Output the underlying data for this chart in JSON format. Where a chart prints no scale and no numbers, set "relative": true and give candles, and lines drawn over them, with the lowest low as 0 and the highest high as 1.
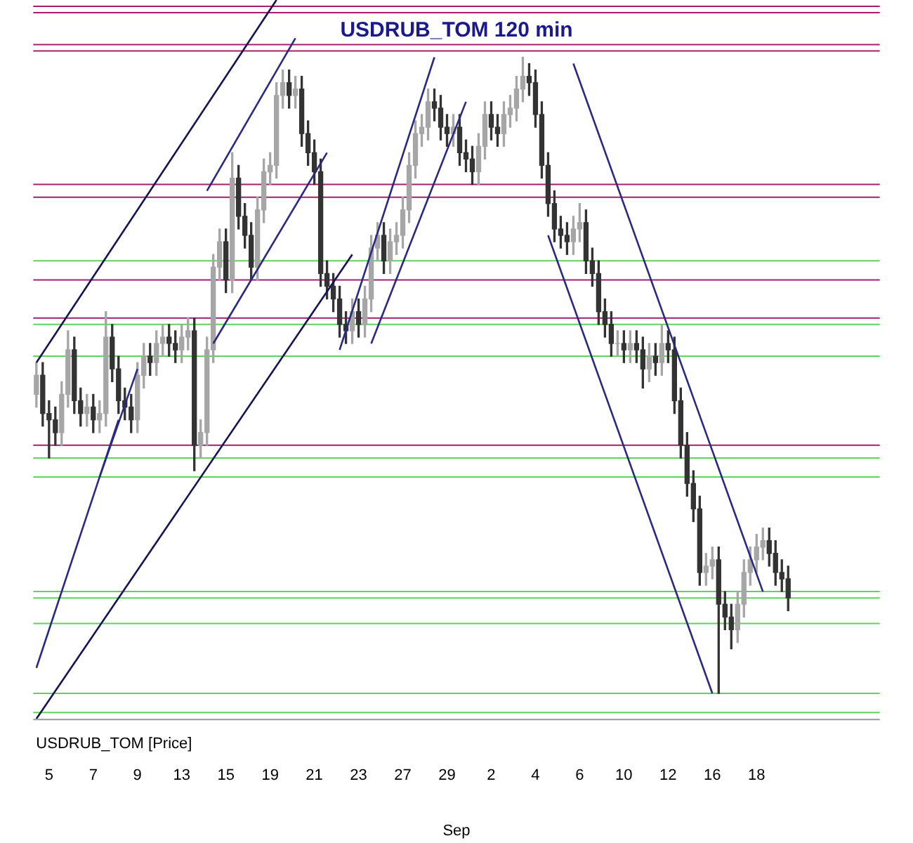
{
  "chart_data": {
    "type": "candlestick",
    "title": "USDRUB_TOM 120 min",
    "xlabel": "Sep",
    "annotations": [
      "USDRUB_TOM [Price]"
    ],
    "relative": true,
    "legend": false,
    "colors": [
      "#a6a6a6",
      "#333333",
      "#333333",
      "#333333",
      "#a6a6a6",
      "#a6a6a6",
      "#333333",
      "#333333",
      "#a6a6a6",
      "#333333",
      "#a6a6a6",
      "#a6a6a6",
      "#333333",
      "#333333",
      "#333333",
      "#333333",
      "#a6a6a6",
      "#a6a6a6",
      "#333333",
      "#a6a6a6",
      "#a6a6a6",
      "#333333",
      "#333333",
      "#a6a6a6",
      "#a6a6a6",
      "#333333",
      "#a6a6a6",
      "#a6a6a6",
      "#a6a6a6",
      "#a6a6a6",
      "#333333",
      "#a6a6a6",
      "#333333",
      "#333333",
      "#333333",
      "#a6a6a6",
      "#a6a6a6",
      "#a6a6a6",
      "#a6a6a6",
      "#a6a6a6",
      "#333333",
      "#a6a6a6",
      "#333333",
      "#333333",
      "#333333",
      "#333333",
      "#333333",
      "#333333",
      "#333333",
      "#333333",
      "#a6a6a6",
      "#333333",
      "#a6a6a6",
      "#a6a6a6",
      "#a6a6a6",
      "#333333",
      "#a6a6a6",
      "#a6a6a6",
      "#a6a6a6",
      "#a6a6a6",
      "#a6a6a6",
      "#a6a6a6",
      "#a6a6a6",
      "#333333",
      "#333333",
      "#333333",
      "#a6a6a6",
      "#333333",
      "#333333",
      "#333333",
      "#a6a6a6",
      "#a6a6a6",
      "#333333",
      "#333333",
      "#a6a6a6",
      "#a6a6a6",
      "#a6a6a6",
      "#a6a6a6",
      "#333333",
      "#333333",
      "#333333",
      "#333333",
      "#333333",
      "#333333",
      "#333333",
      "#a6a6a6",
      "#a6a6a6",
      "#333333",
      "#333333",
      "#333333",
      "#333333",
      "#333333",
      "#a6a6a6",
      "#333333",
      "#a6a6a6",
      "#333333",
      "#333333",
      "#a6a6a6",
      "#333333",
      "#a6a6a6",
      "#333333",
      "#333333",
      "#333333",
      "#333333",
      "#333333",
      "#333333",
      "#a6a6a6",
      "#a6a6a6",
      "#333333",
      "#333333",
      "#333333",
      "#a6a6a6",
      "#a6a6a6",
      "#a6a6a6",
      "#a6a6a6",
      "#a6a6a6",
      "#333333",
      "#333333",
      "#333333",
      "#333333",
      null,
      null,
      null,
      null,
      null,
      null,
      null,
      null,
      null,
      null,
      null,
      null,
      null,
      null
    ],
    "categories": [
      null,
      null,
      "5",
      null,
      null,
      null,
      null,
      null,
      null,
      "7",
      null,
      null,
      null,
      null,
      null,
      null,
      "9",
      null,
      null,
      null,
      null,
      null,
      null,
      "13",
      null,
      null,
      null,
      null,
      null,
      null,
      "15",
      null,
      null,
      null,
      null,
      null,
      null,
      "19",
      null,
      null,
      null,
      null,
      null,
      null,
      "21",
      null,
      null,
      null,
      null,
      null,
      null,
      "23",
      null,
      null,
      null,
      null,
      null,
      null,
      "27",
      null,
      null,
      null,
      null,
      null,
      null,
      "29",
      null,
      null,
      null,
      null,
      null,
      null,
      "2",
      null,
      null,
      null,
      null,
      null,
      null,
      "4",
      null,
      null,
      null,
      null,
      null,
      null,
      "6",
      null,
      null,
      null,
      null,
      null,
      null,
      "10",
      null,
      null,
      null,
      null,
      null,
      null,
      "12",
      null,
      null,
      null,
      null,
      null,
      null,
      "16",
      null,
      null,
      null,
      null,
      null,
      null,
      "18",
      null,
      null,
      null,
      null,
      null,
      null,
      null,
      null,
      null,
      null,
      null,
      null,
      null,
      null,
      null,
      null,
      null,
      null,
      null
    ],
    "ohlc": [
      [
        0.47,
        0.52,
        0.45,
        0.5
      ],
      [
        0.5,
        0.52,
        0.42,
        0.44
      ],
      [
        0.44,
        0.46,
        0.37,
        0.43
      ],
      [
        0.43,
        0.45,
        0.39,
        0.41
      ],
      [
        0.41,
        0.49,
        0.39,
        0.47
      ],
      [
        0.47,
        0.57,
        0.45,
        0.54
      ],
      [
        0.54,
        0.56,
        0.44,
        0.46
      ],
      [
        0.46,
        0.48,
        0.42,
        0.44
      ],
      [
        0.44,
        0.47,
        0.42,
        0.45
      ],
      [
        0.45,
        0.47,
        0.41,
        0.43
      ],
      [
        0.43,
        0.46,
        0.41,
        0.44
      ],
      [
        0.44,
        0.6,
        0.42,
        0.56
      ],
      [
        0.56,
        0.58,
        0.49,
        0.51
      ],
      [
        0.51,
        0.53,
        0.44,
        0.46
      ],
      [
        0.46,
        0.48,
        0.43,
        0.45
      ],
      [
        0.45,
        0.47,
        0.41,
        0.43
      ],
      [
        0.43,
        0.52,
        0.41,
        0.5
      ],
      [
        0.5,
        0.55,
        0.48,
        0.53
      ],
      [
        0.53,
        0.55,
        0.5,
        0.52
      ],
      [
        0.52,
        0.57,
        0.5,
        0.55
      ],
      [
        0.55,
        0.58,
        0.53,
        0.56
      ],
      [
        0.56,
        0.58,
        0.53,
        0.55
      ],
      [
        0.55,
        0.57,
        0.52,
        0.54
      ],
      [
        0.54,
        0.58,
        0.52,
        0.56
      ],
      [
        0.56,
        0.59,
        0.54,
        0.57
      ],
      [
        0.57,
        0.59,
        0.35,
        0.39
      ],
      [
        0.39,
        0.43,
        0.37,
        0.41
      ],
      [
        0.41,
        0.56,
        0.39,
        0.54
      ],
      [
        0.54,
        0.69,
        0.52,
        0.67
      ],
      [
        0.67,
        0.73,
        0.65,
        0.71
      ],
      [
        0.71,
        0.73,
        0.63,
        0.65
      ],
      [
        0.65,
        0.85,
        0.63,
        0.81
      ],
      [
        0.81,
        0.83,
        0.73,
        0.75
      ],
      [
        0.75,
        0.77,
        0.7,
        0.72
      ],
      [
        0.72,
        0.74,
        0.65,
        0.67
      ],
      [
        0.67,
        0.78,
        0.65,
        0.76
      ],
      [
        0.76,
        0.84,
        0.74,
        0.82
      ],
      [
        0.82,
        0.85,
        0.8,
        0.83
      ],
      [
        0.83,
        0.96,
        0.81,
        0.94
      ],
      [
        0.94,
        0.98,
        0.92,
        0.96
      ],
      [
        0.96,
        0.98,
        0.92,
        0.94
      ],
      [
        0.94,
        0.97,
        0.92,
        0.95
      ],
      [
        0.95,
        0.97,
        0.86,
        0.88
      ],
      [
        0.88,
        0.9,
        0.83,
        0.85
      ],
      [
        0.85,
        0.87,
        0.8,
        0.82
      ],
      [
        0.82,
        0.84,
        0.64,
        0.66
      ],
      [
        0.66,
        0.68,
        0.62,
        0.64
      ],
      [
        0.64,
        0.66,
        0.6,
        0.62
      ],
      [
        0.62,
        0.64,
        0.56,
        0.58
      ],
      [
        0.58,
        0.6,
        0.55,
        0.57
      ],
      [
        0.57,
        0.62,
        0.55,
        0.6
      ],
      [
        0.6,
        0.62,
        0.56,
        0.58
      ],
      [
        0.58,
        0.64,
        0.56,
        0.62
      ],
      [
        0.62,
        0.72,
        0.6,
        0.7
      ],
      [
        0.7,
        0.74,
        0.68,
        0.72
      ],
      [
        0.72,
        0.74,
        0.66,
        0.68
      ],
      [
        0.68,
        0.73,
        0.66,
        0.71
      ],
      [
        0.71,
        0.74,
        0.69,
        0.72
      ],
      [
        0.72,
        0.78,
        0.7,
        0.76
      ],
      [
        0.76,
        0.85,
        0.74,
        0.83
      ],
      [
        0.83,
        0.9,
        0.81,
        0.88
      ],
      [
        0.88,
        0.91,
        0.86,
        0.89
      ],
      [
        0.89,
        0.95,
        0.87,
        0.93
      ],
      [
        0.93,
        0.95,
        0.9,
        0.92
      ],
      [
        0.92,
        0.94,
        0.87,
        0.89
      ],
      [
        0.89,
        0.91,
        0.86,
        0.88
      ],
      [
        0.88,
        0.91,
        0.86,
        0.89
      ],
      [
        0.89,
        0.91,
        0.83,
        0.85
      ],
      [
        0.85,
        0.87,
        0.82,
        0.84
      ],
      [
        0.84,
        0.86,
        0.8,
        0.82
      ],
      [
        0.82,
        0.88,
        0.8,
        0.86
      ],
      [
        0.86,
        0.93,
        0.84,
        0.91
      ],
      [
        0.91,
        0.93,
        0.87,
        0.89
      ],
      [
        0.89,
        0.91,
        0.86,
        0.88
      ],
      [
        0.88,
        0.93,
        0.86,
        0.91
      ],
      [
        0.91,
        0.94,
        0.89,
        0.92
      ],
      [
        0.92,
        0.97,
        0.9,
        0.95
      ],
      [
        0.95,
        1.0,
        0.93,
        0.97
      ],
      [
        0.97,
        0.99,
        0.94,
        0.96
      ],
      [
        0.96,
        0.98,
        0.89,
        0.91
      ],
      [
        0.91,
        0.93,
        0.81,
        0.83
      ],
      [
        0.83,
        0.85,
        0.75,
        0.77
      ],
      [
        0.77,
        0.79,
        0.71,
        0.73
      ],
      [
        0.73,
        0.75,
        0.7,
        0.72
      ],
      [
        0.72,
        0.74,
        0.69,
        0.71
      ],
      [
        0.71,
        0.75,
        0.69,
        0.73
      ],
      [
        0.73,
        0.77,
        0.71,
        0.74
      ],
      [
        0.74,
        0.76,
        0.66,
        0.68
      ],
      [
        0.68,
        0.7,
        0.64,
        0.66
      ],
      [
        0.66,
        0.68,
        0.58,
        0.6
      ],
      [
        0.6,
        0.62,
        0.56,
        0.58
      ],
      [
        0.58,
        0.6,
        0.53,
        0.55
      ],
      [
        0.55,
        0.57,
        0.53,
        0.55
      ],
      [
        0.55,
        0.57,
        0.52,
        0.54
      ],
      [
        0.54,
        0.57,
        0.52,
        0.55
      ],
      [
        0.55,
        0.57,
        0.52,
        0.54
      ],
      [
        0.54,
        0.56,
        0.48,
        0.51
      ],
      [
        0.51,
        0.55,
        0.49,
        0.53
      ],
      [
        0.53,
        0.55,
        0.5,
        0.52
      ],
      [
        0.52,
        0.58,
        0.5,
        0.55
      ],
      [
        0.55,
        0.57,
        0.52,
        0.54
      ],
      [
        0.54,
        0.56,
        0.44,
        0.46
      ],
      [
        0.46,
        0.48,
        0.37,
        0.39
      ],
      [
        0.39,
        0.41,
        0.31,
        0.33
      ],
      [
        0.33,
        0.35,
        0.27,
        0.29
      ],
      [
        0.29,
        0.31,
        0.17,
        0.19
      ],
      [
        0.19,
        0.22,
        0.17,
        0.2
      ],
      [
        0.2,
        0.23,
        0.18,
        0.21
      ],
      [
        0.21,
        0.23,
        0,
        0.14
      ],
      [
        0.14,
        0.16,
        0.1,
        0.12
      ],
      [
        0.12,
        0.14,
        0.07,
        0.1
      ],
      [
        0.1,
        0.16,
        0.08,
        0.14
      ],
      [
        0.14,
        0.21,
        0.12,
        0.19
      ],
      [
        0.19,
        0.23,
        0.17,
        0.21
      ],
      [
        0.21,
        0.25,
        0.19,
        0.23
      ],
      [
        0.23,
        0.26,
        0.21,
        0.24
      ],
      [
        0.24,
        0.26,
        0.2,
        0.22
      ],
      [
        0.22,
        0.24,
        0.17,
        0.19
      ],
      [
        0.19,
        0.21,
        0.16,
        0.18
      ],
      [
        0.18,
        0.2,
        0.13,
        0.15
      ],
      null,
      null,
      null,
      null,
      null,
      null,
      null,
      null,
      null,
      null,
      null,
      null,
      null,
      null
    ],
    "series": [
      {
        "type": "line",
        "color": "#141450",
        "values": [
          0.52,
          null,
          null,
          null,
          null,
          null,
          null,
          null,
          null,
          null,
          null,
          null,
          null,
          null,
          null,
          null,
          null,
          null,
          null,
          null,
          null,
          null,
          null,
          null,
          null,
          null,
          null,
          null,
          null,
          null,
          null,
          null,
          null,
          null,
          null,
          null,
          null,
          null,
          1.09,
          null,
          null,
          null,
          null,
          null,
          null,
          null,
          null,
          null,
          null,
          null,
          null,
          null,
          null,
          null,
          null,
          null,
          null,
          null,
          null,
          null,
          null,
          null,
          null,
          null,
          null,
          null,
          null,
          null,
          null,
          null,
          null,
          null,
          null,
          null,
          null,
          null,
          null,
          null,
          null,
          null,
          null,
          null,
          null,
          null,
          null,
          null,
          null,
          null,
          null,
          null,
          null,
          null,
          null,
          null,
          null,
          null,
          null,
          null,
          null,
          null,
          null,
          null,
          null,
          null,
          null,
          null,
          null,
          null,
          null,
          null,
          null,
          null,
          null,
          null,
          null,
          null,
          null,
          null,
          null,
          null,
          null,
          null,
          null,
          null,
          null,
          null,
          null,
          null,
          null,
          null,
          null,
          null,
          null,
          null
        ]
      },
      {
        "type": "line",
        "color": "#141450",
        "values": [
          -0.04,
          null,
          null,
          null,
          null,
          null,
          null,
          null,
          null,
          null,
          null,
          null,
          null,
          null,
          null,
          null,
          null,
          null,
          null,
          null,
          null,
          null,
          null,
          null,
          null,
          null,
          null,
          null,
          null,
          null,
          null,
          null,
          null,
          null,
          null,
          null,
          null,
          null,
          null,
          null,
          null,
          null,
          null,
          null,
          null,
          null,
          null,
          null,
          null,
          null,
          0.69,
          null,
          null,
          null,
          null,
          null,
          null,
          null,
          null,
          null,
          null,
          null,
          null,
          null,
          null,
          null,
          null,
          null,
          null,
          null,
          null,
          null,
          null,
          null,
          null,
          null,
          null,
          null,
          null,
          null,
          null,
          null,
          null,
          null,
          null,
          null,
          null,
          null,
          null,
          null,
          null,
          null,
          null,
          null,
          null,
          null,
          null,
          null,
          null,
          null,
          null,
          null,
          null,
          null,
          null,
          null,
          null,
          null,
          null,
          null,
          null,
          null,
          null,
          null,
          null,
          null,
          null,
          null,
          null,
          null,
          null,
          null,
          null,
          null,
          null,
          null,
          null,
          null,
          null,
          null,
          null,
          null,
          null,
          null
        ]
      },
      {
        "type": "line",
        "color": "#2a2a80",
        "values": [
          null,
          null,
          null,
          null,
          null,
          null,
          null,
          null,
          null,
          null,
          null,
          null,
          null,
          null,
          null,
          null,
          null,
          null,
          null,
          null,
          null,
          null,
          null,
          null,
          null,
          null,
          null,
          0.79,
          null,
          null,
          null,
          null,
          null,
          null,
          null,
          null,
          null,
          null,
          null,
          null,
          null,
          1.03,
          null,
          null,
          null,
          null,
          null,
          null,
          null,
          null,
          null,
          null,
          null,
          null,
          null,
          null,
          null,
          null,
          null,
          null,
          null,
          null,
          null,
          null,
          null,
          null,
          null,
          null,
          null,
          null,
          null,
          null,
          null,
          null,
          null,
          null,
          null,
          null,
          null,
          null,
          null,
          null,
          null,
          null,
          null,
          null,
          null,
          null,
          null,
          null,
          null,
          null,
          null,
          null,
          null,
          null,
          null,
          null,
          null,
          null,
          null,
          null,
          null,
          null,
          null,
          null,
          null,
          null,
          null,
          null,
          null,
          null,
          null,
          null,
          null,
          null,
          null,
          null,
          null,
          null,
          null,
          null,
          null,
          null,
          null,
          null,
          null,
          null,
          null,
          null,
          null,
          null,
          null,
          null
        ]
      },
      {
        "type": "line",
        "color": "#2a2a80",
        "values": [
          null,
          null,
          null,
          null,
          null,
          null,
          null,
          null,
          null,
          null,
          null,
          null,
          null,
          null,
          null,
          null,
          null,
          null,
          null,
          null,
          null,
          null,
          null,
          null,
          null,
          null,
          null,
          null,
          0.55,
          null,
          null,
          null,
          null,
          null,
          null,
          null,
          null,
          null,
          null,
          null,
          null,
          null,
          null,
          null,
          null,
          null,
          0.85,
          null,
          null,
          null,
          null,
          null,
          null,
          null,
          null,
          null,
          null,
          null,
          null,
          null,
          null,
          null,
          null,
          null,
          null,
          null,
          null,
          null,
          null,
          null,
          null,
          null,
          null,
          null,
          null,
          null,
          null,
          null,
          null,
          null,
          null,
          null,
          null,
          null,
          null,
          null,
          null,
          null,
          null,
          null,
          null,
          null,
          null,
          null,
          null,
          null,
          null,
          null,
          null,
          null,
          null,
          null,
          null,
          null,
          null,
          null,
          null,
          null,
          null,
          null,
          null,
          null,
          null,
          null,
          null,
          null,
          null,
          null,
          null,
          null,
          null,
          null,
          null,
          null,
          null,
          null,
          null,
          null,
          null,
          null,
          null,
          null,
          null,
          null
        ]
      },
      {
        "type": "line",
        "color": "#2a2a80",
        "values": [
          0.04,
          null,
          null,
          null,
          null,
          null,
          null,
          null,
          null,
          null,
          null,
          null,
          null,
          0.43,
          null,
          null,
          null,
          null,
          null,
          null,
          null,
          null,
          null,
          null,
          null,
          null,
          null,
          null,
          null,
          null,
          null,
          null,
          null,
          null,
          null,
          null,
          null,
          null,
          null,
          null,
          null,
          null,
          null,
          null,
          null,
          null,
          null,
          null,
          null,
          null,
          null,
          null,
          null,
          null,
          null,
          null,
          null,
          null,
          null,
          null,
          null,
          null,
          null,
          null,
          null,
          null,
          null,
          null,
          null,
          null,
          null,
          null,
          null,
          null,
          null,
          null,
          null,
          null,
          null,
          null,
          null,
          null,
          null,
          null,
          null,
          null,
          null,
          null,
          null,
          null,
          null,
          null,
          null,
          null,
          null,
          null,
          null,
          null,
          null,
          null,
          null,
          null,
          null,
          null,
          null,
          null,
          null,
          null,
          null,
          null,
          null,
          null,
          null,
          null,
          null,
          null,
          null,
          null,
          null,
          null,
          null,
          null,
          null,
          null,
          null,
          null,
          null,
          null,
          null,
          null,
          null,
          null,
          null,
          null
        ]
      },
      {
        "type": "line",
        "color": "#2a2a80",
        "values": [
          null,
          null,
          null,
          null,
          null,
          null,
          null,
          null,
          null,
          null,
          0.34,
          null,
          null,
          null,
          null,
          null,
          0.51,
          null,
          null,
          null,
          null,
          null,
          null,
          null,
          null,
          null,
          null,
          null,
          null,
          null,
          null,
          null,
          null,
          null,
          null,
          null,
          null,
          null,
          null,
          null,
          null,
          null,
          null,
          null,
          null,
          null,
          null,
          null,
          null,
          null,
          null,
          null,
          null,
          null,
          null,
          null,
          null,
          null,
          null,
          null,
          null,
          null,
          null,
          null,
          null,
          null,
          null,
          null,
          null,
          null,
          null,
          null,
          null,
          null,
          null,
          null,
          null,
          null,
          null,
          null,
          null,
          null,
          null,
          null,
          null,
          null,
          null,
          null,
          null,
          null,
          null,
          null,
          null,
          null,
          null,
          null,
          null,
          null,
          null,
          null,
          null,
          null,
          null,
          null,
          null,
          null,
          null,
          null,
          null,
          null,
          null,
          null,
          null,
          null,
          null,
          null,
          null,
          null,
          null,
          null,
          null,
          null,
          null,
          null,
          null,
          null,
          null,
          null,
          null,
          null,
          null,
          null,
          null,
          null
        ]
      },
      {
        "type": "line",
        "color": "#2a2a80",
        "values": [
          null,
          null,
          null,
          null,
          null,
          null,
          null,
          null,
          null,
          null,
          null,
          null,
          null,
          null,
          null,
          null,
          null,
          null,
          null,
          null,
          null,
          null,
          null,
          null,
          null,
          null,
          null,
          null,
          null,
          null,
          null,
          null,
          null,
          null,
          null,
          null,
          null,
          null,
          null,
          null,
          null,
          null,
          null,
          null,
          null,
          null,
          null,
          null,
          0.54,
          null,
          null,
          null,
          null,
          null,
          null,
          null,
          null,
          null,
          null,
          null,
          null,
          null,
          null,
          1.0,
          null,
          null,
          null,
          null,
          null,
          null,
          null,
          null,
          null,
          null,
          null,
          null,
          null,
          null,
          null,
          null,
          null,
          null,
          null,
          null,
          null,
          null,
          null,
          null,
          null,
          null,
          null,
          null,
          null,
          null,
          null,
          null,
          null,
          null,
          null,
          null,
          null,
          null,
          null,
          null,
          null,
          null,
          null,
          null,
          null,
          null,
          null,
          null,
          null,
          null,
          null,
          null,
          null,
          null,
          null,
          null,
          null,
          null,
          null,
          null,
          null,
          null,
          null,
          null,
          null,
          null,
          null,
          null,
          null,
          null
        ]
      },
      {
        "type": "line",
        "color": "#2a2a80",
        "values": [
          null,
          null,
          null,
          null,
          null,
          null,
          null,
          null,
          null,
          null,
          null,
          null,
          null,
          null,
          null,
          null,
          null,
          null,
          null,
          null,
          null,
          null,
          null,
          null,
          null,
          null,
          null,
          null,
          null,
          null,
          null,
          null,
          null,
          null,
          null,
          null,
          null,
          null,
          null,
          null,
          null,
          null,
          null,
          null,
          null,
          null,
          null,
          null,
          null,
          null,
          null,
          null,
          null,
          0.55,
          null,
          null,
          null,
          null,
          null,
          null,
          null,
          null,
          null,
          null,
          null,
          null,
          null,
          null,
          0.93,
          null,
          null,
          null,
          null,
          null,
          null,
          null,
          null,
          null,
          null,
          null,
          null,
          null,
          null,
          null,
          null,
          null,
          null,
          null,
          null,
          null,
          null,
          null,
          null,
          null,
          null,
          null,
          null,
          null,
          null,
          null,
          null,
          null,
          null,
          null,
          null,
          null,
          null,
          null,
          null,
          null,
          null,
          null,
          null,
          null,
          null,
          null,
          null,
          null,
          null,
          null,
          null,
          null,
          null,
          null,
          null,
          null,
          null,
          null,
          null,
          null,
          null,
          null,
          null,
          null
        ]
      },
      {
        "type": "line",
        "color": "#2a2a80",
        "values": [
          null,
          null,
          null,
          null,
          null,
          null,
          null,
          null,
          null,
          null,
          null,
          null,
          null,
          null,
          null,
          null,
          null,
          null,
          null,
          null,
          null,
          null,
          null,
          null,
          null,
          null,
          null,
          null,
          null,
          null,
          null,
          null,
          null,
          null,
          null,
          null,
          null,
          null,
          null,
          null,
          null,
          null,
          null,
          null,
          null,
          null,
          null,
          null,
          null,
          null,
          null,
          null,
          null,
          null,
          null,
          null,
          null,
          null,
          null,
          null,
          null,
          null,
          null,
          null,
          null,
          null,
          null,
          null,
          null,
          null,
          null,
          null,
          null,
          null,
          null,
          null,
          null,
          null,
          null,
          null,
          null,
          null,
          null,
          null,
          null,
          0.99,
          null,
          null,
          null,
          null,
          null,
          null,
          null,
          null,
          null,
          null,
          null,
          null,
          null,
          null,
          null,
          null,
          null,
          null,
          null,
          null,
          null,
          null,
          null,
          null,
          null,
          null,
          null,
          null,
          null,
          0.16,
          null,
          null,
          null,
          null,
          null,
          null,
          null,
          null,
          null,
          null,
          null,
          null,
          null,
          null,
          null,
          null,
          null,
          null
        ]
      },
      {
        "type": "line",
        "color": "#2a2a80",
        "values": [
          null,
          null,
          null,
          null,
          null,
          null,
          null,
          null,
          null,
          null,
          null,
          null,
          null,
          null,
          null,
          null,
          null,
          null,
          null,
          null,
          null,
          null,
          null,
          null,
          null,
          null,
          null,
          null,
          null,
          null,
          null,
          null,
          null,
          null,
          null,
          null,
          null,
          null,
          null,
          null,
          null,
          null,
          null,
          null,
          null,
          null,
          null,
          null,
          null,
          null,
          null,
          null,
          null,
          null,
          null,
          null,
          null,
          null,
          null,
          null,
          null,
          null,
          null,
          null,
          null,
          null,
          null,
          null,
          null,
          null,
          null,
          null,
          null,
          null,
          null,
          null,
          null,
          null,
          null,
          null,
          null,
          0.72,
          null,
          null,
          null,
          null,
          null,
          null,
          null,
          null,
          null,
          null,
          null,
          null,
          null,
          null,
          null,
          null,
          null,
          null,
          null,
          null,
          null,
          null,
          null,
          null,
          null,
          0,
          null,
          null,
          null,
          null,
          null,
          null,
          null,
          null,
          null,
          null,
          null,
          null,
          null,
          null,
          null,
          null,
          null,
          null,
          null,
          null,
          null,
          null,
          null,
          null,
          null,
          null
        ]
      }
    ],
    "ref_lines": [
      {
        "axis": "y",
        "value": 1.08,
        "color": "#a3206e"
      },
      {
        "axis": "y",
        "value": 1.07,
        "color": "#a3206e"
      },
      {
        "axis": "y",
        "value": 1.02,
        "color": "#a3206e"
      },
      {
        "axis": "y",
        "value": 1.01,
        "color": "#a3206e"
      },
      {
        "axis": "y",
        "value": 0.8,
        "color": "#a3206e"
      },
      {
        "axis": "y",
        "value": 0.78,
        "color": "#a3206e"
      },
      {
        "axis": "y",
        "value": 0.68,
        "color": "#5fd35f"
      },
      {
        "axis": "y",
        "value": 0.65,
        "color": "#a3206e"
      },
      {
        "axis": "y",
        "value": 0.59,
        "color": "#a3206e"
      },
      {
        "axis": "y",
        "value": 0.58,
        "color": "#5fd35f"
      },
      {
        "axis": "y",
        "value": 0.53,
        "color": "#5fd35f"
      },
      {
        "axis": "y",
        "value": 0.39,
        "color": "#a3206e"
      },
      {
        "axis": "y",
        "value": 0.37,
        "color": "#5fd35f"
      },
      {
        "axis": "y",
        "value": 0.34,
        "color": "#5fd35f"
      },
      {
        "axis": "y",
        "value": 0.16,
        "color": "#5fd35f"
      },
      {
        "axis": "y",
        "value": 0.15,
        "color": "#5fd35f"
      },
      {
        "axis": "y",
        "value": 0.11,
        "color": "#5fd35f"
      },
      {
        "axis": "y",
        "value": 0,
        "color": "#5fd35f"
      },
      {
        "axis": "y",
        "value": -0.03,
        "color": "#5fd35f"
      }
    ]
  }
}
